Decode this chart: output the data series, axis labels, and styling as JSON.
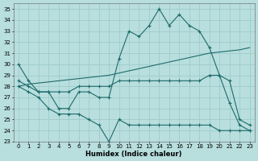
{
  "xlabel": "Humidex (Indice chaleur)",
  "xlim": [
    -0.5,
    23.5
  ],
  "ylim": [
    23,
    35.5
  ],
  "yticks": [
    23,
    24,
    25,
    26,
    27,
    28,
    29,
    30,
    31,
    32,
    33,
    34,
    35
  ],
  "xticks": [
    0,
    1,
    2,
    3,
    4,
    5,
    6,
    7,
    8,
    9,
    10,
    11,
    12,
    13,
    14,
    15,
    16,
    17,
    18,
    19,
    20,
    21,
    22,
    23
  ],
  "bg_color": "#b8dede",
  "grid_color": "#a0cccc",
  "line_color": "#1e6b6b",
  "lines": [
    {
      "x": [
        0,
        1,
        2,
        3,
        4,
        5,
        6,
        7,
        8,
        9,
        10,
        11,
        12,
        13,
        14,
        15,
        16,
        17,
        18,
        19,
        20,
        21,
        22,
        23
      ],
      "y": [
        30,
        28.5,
        27.5,
        27.5,
        26,
        26,
        27.5,
        27.5,
        27,
        27,
        30.5,
        33,
        32.5,
        33.5,
        35,
        33.5,
        34.5,
        33.5,
        33,
        31.5,
        29,
        26.5,
        24.5,
        24
      ],
      "marker": true
    },
    {
      "x": [
        0,
        1,
        2,
        3,
        4,
        5,
        6,
        7,
        8,
        9,
        10,
        11,
        12,
        13,
        14,
        15,
        16,
        17,
        18,
        19,
        20,
        21,
        22,
        23
      ],
      "y": [
        28.0,
        28.2,
        28.3,
        28.4,
        28.5,
        28.6,
        28.7,
        28.8,
        28.9,
        29.0,
        29.2,
        29.4,
        29.6,
        29.8,
        30.0,
        30.2,
        30.4,
        30.6,
        30.8,
        31.0,
        31.1,
        31.2,
        31.3,
        31.5
      ],
      "marker": false
    },
    {
      "x": [
        0,
        1,
        2,
        3,
        4,
        5,
        6,
        7,
        8,
        9,
        10,
        11,
        12,
        13,
        14,
        15,
        16,
        17,
        18,
        19,
        20,
        21,
        22,
        23
      ],
      "y": [
        28.5,
        28.0,
        27.5,
        27.5,
        27.5,
        27.5,
        28.0,
        28.0,
        28.0,
        28.0,
        28.5,
        28.5,
        28.5,
        28.5,
        28.5,
        28.5,
        28.5,
        28.5,
        28.5,
        29.0,
        29.0,
        28.5,
        25.0,
        24.5
      ],
      "marker": true
    },
    {
      "x": [
        0,
        1,
        2,
        3,
        4,
        5,
        6,
        7,
        8,
        9,
        10,
        11,
        12,
        13,
        14,
        15,
        16,
        17,
        18,
        19,
        20,
        21,
        22,
        23
      ],
      "y": [
        28.0,
        27.5,
        27.0,
        26.0,
        25.5,
        25.5,
        25.5,
        25.0,
        24.5,
        23.0,
        25.0,
        24.5,
        24.5,
        24.5,
        24.5,
        24.5,
        24.5,
        24.5,
        24.5,
        24.5,
        24.0,
        24.0,
        24.0,
        24.0
      ],
      "marker": true
    }
  ]
}
